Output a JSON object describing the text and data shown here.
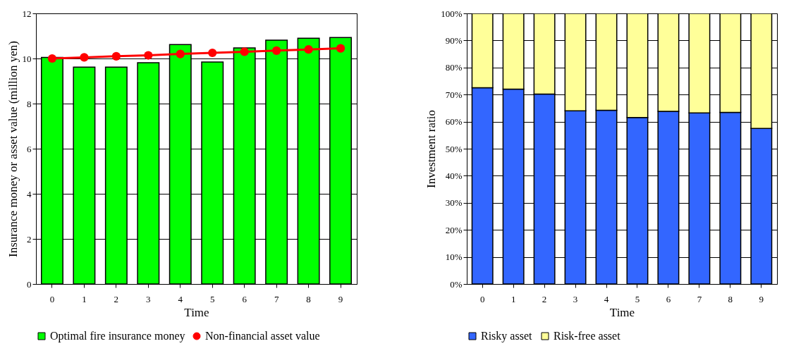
{
  "chart_data": [
    {
      "type": "bar",
      "xlabel": "Time",
      "ylabel": "Insurance money or asset value (million yen)",
      "categories": [
        "0",
        "1",
        "2",
        "3",
        "4",
        "5",
        "6",
        "7",
        "8",
        "9"
      ],
      "ylim": [
        0,
        12
      ],
      "yticks": [
        0,
        2,
        4,
        6,
        8,
        10,
        12
      ],
      "grid": "y",
      "legend": "bottom",
      "marker": "circle",
      "series": [
        {
          "name": "Optimal fire insurance money",
          "color": "#00ff00",
          "values": [
            10.05,
            9.62,
            9.62,
            9.81,
            10.62,
            9.84,
            10.47,
            10.81,
            10.9,
            10.93
          ]
        },
        {
          "name": "Non-financial asset value",
          "type": "line",
          "color": "#ff0000",
          "values": [
            10.0,
            10.05,
            10.1,
            10.14,
            10.2,
            10.25,
            10.3,
            10.35,
            10.4,
            10.45
          ]
        }
      ]
    },
    {
      "type": "bar",
      "stacked": true,
      "xlabel": "Time",
      "ylabel": "Investment ratio",
      "categories": [
        "0",
        "1",
        "2",
        "3",
        "4",
        "5",
        "6",
        "7",
        "8",
        "9"
      ],
      "ylim": [
        0,
        100
      ],
      "yticks": [
        {
          "value": 0,
          "label": "0%"
        },
        {
          "value": 10,
          "label": "10%"
        },
        {
          "value": 20,
          "label": "20%"
        },
        {
          "value": 30,
          "label": "30%"
        },
        {
          "value": 40,
          "label": "40%"
        },
        {
          "value": 50,
          "label": "50%"
        },
        {
          "value": 60,
          "label": "60%"
        },
        {
          "value": 70,
          "label": "70%"
        },
        {
          "value": 80,
          "label": "80%"
        },
        {
          "value": 90,
          "label": "90%"
        },
        {
          "value": 100,
          "label": "100%"
        }
      ],
      "grid": "y",
      "legend": "bottom",
      "series": [
        {
          "name": "Risky asset",
          "color": "#3366ff",
          "values": [
            72.5,
            72,
            70.2,
            64,
            64.2,
            61.5,
            63.8,
            63.2,
            63.4,
            57.5
          ]
        },
        {
          "name": "Risk-free asset",
          "color": "#ffff99",
          "values": [
            27.5,
            28,
            29.8,
            36,
            35.8,
            38.5,
            36.2,
            36.8,
            36.6,
            42.5
          ]
        }
      ]
    }
  ]
}
